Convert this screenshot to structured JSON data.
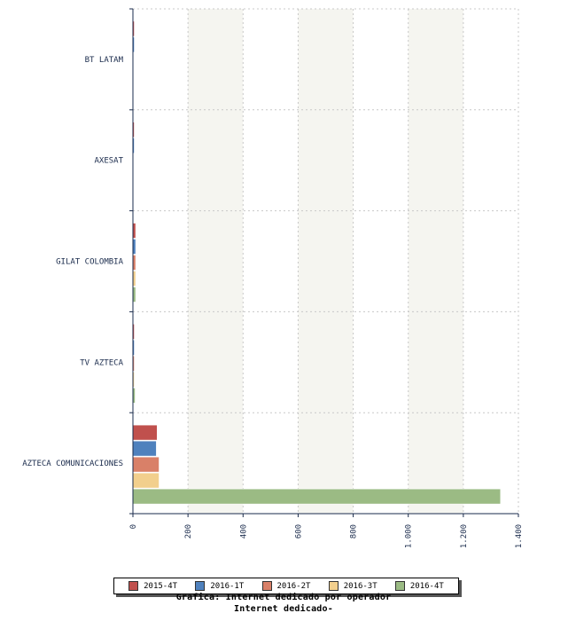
{
  "chart_data": {
    "type": "bar",
    "orientation": "horizontal",
    "title": "Grafica: Internet dedicado por operador",
    "subtitle": "Internet dedicado-",
    "categories": [
      "BT LATAM",
      "AXESAT",
      "GILAT COLOMBIA",
      "TV AZTECA",
      "AZTECA COMUNICACIONES"
    ],
    "series": [
      {
        "name": "2015-4T",
        "color": "#c0504d",
        "values": [
          5,
          2,
          10,
          5,
          88
        ]
      },
      {
        "name": "2016-1T",
        "color": "#4f81bd",
        "values": [
          5,
          2,
          10,
          5,
          85
        ]
      },
      {
        "name": "2016-2T",
        "color": "#d98068",
        "values": [
          0,
          0,
          10,
          5,
          95
        ]
      },
      {
        "name": "2016-3T",
        "color": "#f2cf8d",
        "values": [
          0,
          0,
          10,
          5,
          95
        ]
      },
      {
        "name": "2016-4T",
        "color": "#9bbb84",
        "values": [
          0,
          0,
          10,
          8,
          1335
        ]
      }
    ],
    "x_ticks": [
      "0",
      "200",
      "400",
      "600",
      "800",
      "1.000",
      "1.200",
      "1.400"
    ],
    "xlim": [
      0,
      1400
    ],
    "grid": true,
    "legend_position": "bottom"
  }
}
